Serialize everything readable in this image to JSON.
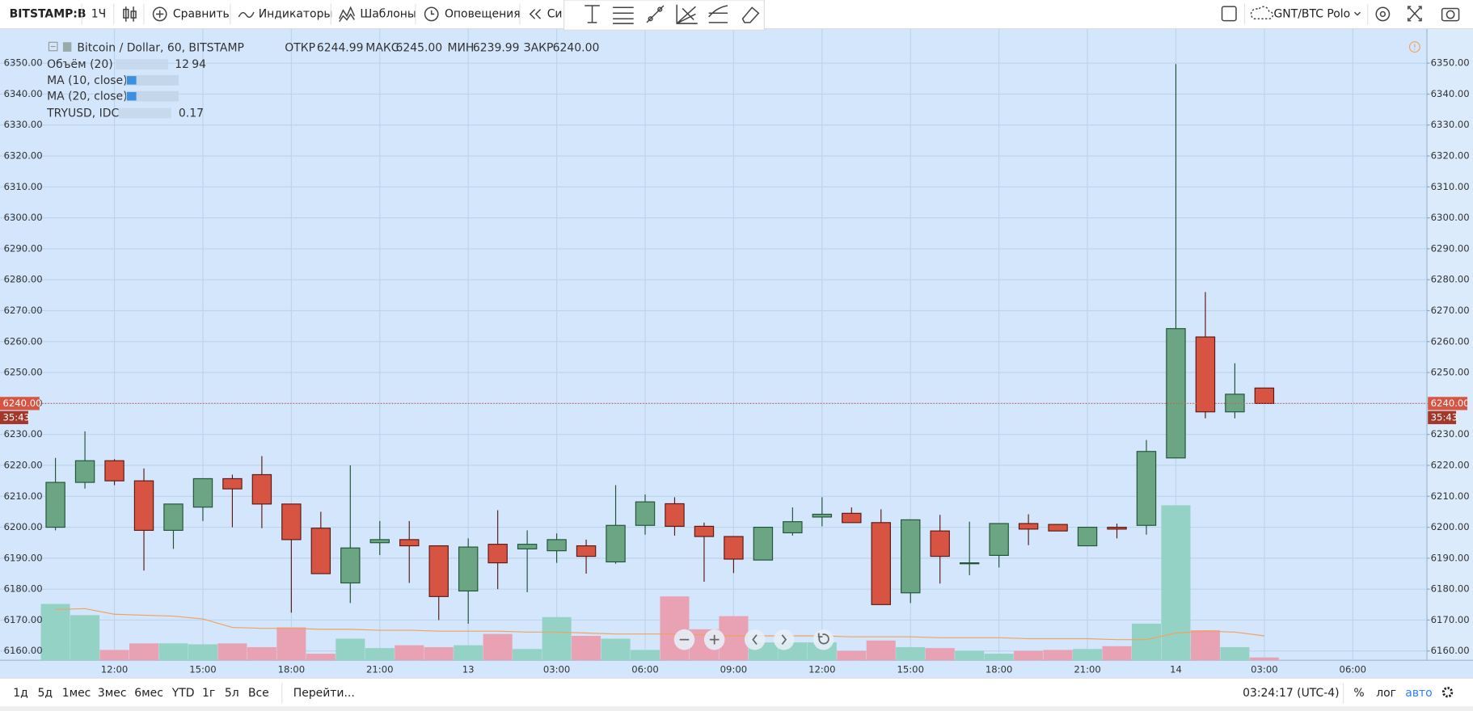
{
  "toolbar": {
    "symbol": "BITSTAMP:B",
    "interval": "1Ч",
    "compare": "Сравнить",
    "indicators": "Индикаторы",
    "templates": "Шаблоны",
    "alerts": "Оповещения",
    "replay": "Си",
    "layout_name": "GNT/BTC Polo"
  },
  "legend": {
    "open_label": "ОТКР",
    "open": "6244.99",
    "high_label": "МАКС",
    "high": "6245.00",
    "low_label": "МИН",
    "low": "6239.99",
    "close_label": "ЗАКР",
    "close": "6240.00",
    "studies": [
      {
        "name": "Объём (20)",
        "values": [
          12,
          94
        ]
      },
      {
        "name": "MA (10, close)"
      },
      {
        "name": "MA (20, close)"
      },
      {
        "name": "TRYUSD, IDC",
        "values": [
          0.17
        ]
      }
    ]
  },
  "bottom_bar": {
    "ranges": [
      "1д",
      "5д",
      "1мес",
      "3мес",
      "6мес",
      "YTD",
      "1г",
      "5л",
      "Все"
    ],
    "goto": "Перейти...",
    "clock": "03:24:17 (UTC-4)",
    "percent": "%",
    "log": "лог",
    "auto": "авто"
  },
  "chart_data": {
    "type": "candlestick",
    "title": "Bitcoin / Dollar, 60, BITSTAMP",
    "categories": [
      null,
      null,
      "12:00",
      null,
      null,
      "15:00",
      null,
      null,
      "18:00",
      null,
      null,
      "21:00",
      null,
      null,
      "13",
      null,
      null,
      "03:00",
      null,
      null,
      "06:00",
      null,
      null,
      "09:00",
      null,
      null,
      "12:00",
      null,
      null,
      "15:00",
      null,
      null,
      "18:00",
      null,
      null,
      "21:00",
      null,
      null,
      "14",
      null,
      null,
      "03:00",
      null,
      null,
      "06:00"
    ],
    "open": [
      6200,
      6214.5,
      6221.5,
      6215,
      6199,
      6206.5,
      6215.7,
      6217,
      6207.5,
      6199.7,
      6182,
      6195,
      6196,
      6194,
      6179.4,
      6194.5,
      6193,
      6192.4,
      6194,
      6188.8,
      6200.6,
      6207.6,
      6200.3,
      6197,
      6189.4,
      6198.2,
      6203.3,
      6204.5,
      6201.5,
      6178.8,
      6198.8,
      6188.2,
      6190.9,
      6201.2,
      6200.9,
      6194,
      6200,
      6200.6,
      6222.4,
      6261.5,
      6237.3,
      6244.99,
      null,
      null,
      null
    ],
    "high": [
      6222.4,
      6231,
      6222,
      6219,
      6207.5,
      6215.7,
      6217,
      6223,
      6207.5,
      6205,
      6220,
      6202,
      6202,
      6194,
      6196.4,
      6205.5,
      6199,
      6198,
      6196,
      6213.6,
      6210.6,
      6209.7,
      6201.5,
      6197,
      6200,
      6206.4,
      6209.7,
      6206.4,
      6205.8,
      6202.4,
      6204,
      6201.8,
      6201.2,
      6204.2,
      6200.9,
      6200,
      6201.2,
      6228.2,
      6349.7,
      6276,
      6253,
      6245,
      null,
      null,
      null
    ],
    "low": [
      6199,
      6212.5,
      6213.6,
      6186,
      6193,
      6202,
      6200,
      6199.7,
      6172.4,
      6185,
      6175.5,
      6191,
      6182,
      6170,
      6168.8,
      6180,
      6179,
      6188.5,
      6185,
      6188.2,
      6197.6,
      6197.3,
      6182.4,
      6185.2,
      6189.4,
      6197.3,
      6200.3,
      6201.5,
      6175,
      6175.5,
      6181.8,
      6184.5,
      6187,
      6194.2,
      6198.8,
      6194,
      6196.4,
      6197.6,
      6222.4,
      6235.2,
      6235.2,
      6239.99,
      null,
      null,
      null
    ],
    "close": [
      6214.5,
      6221.5,
      6215,
      6199,
      6207.5,
      6215.7,
      6212.4,
      6207.5,
      6196,
      6185,
      6193.3,
      6196,
      6194,
      6177.6,
      6193.6,
      6188.5,
      6194.5,
      6196,
      6190.6,
      6200.6,
      6208.2,
      6200.3,
      6197,
      6189.7,
      6200,
      6201.8,
      6204.2,
      6201.5,
      6175,
      6202.4,
      6190.6,
      6188.5,
      6201.2,
      6199.4,
      6198.8,
      6200,
      6199.4,
      6224.5,
      6264.2,
      6237.3,
      6243,
      6240,
      null,
      null,
      null
    ],
    "up_color": "#6ba583",
    "down_color": "#d75442",
    "volume": [
      60,
      48,
      11,
      18,
      18,
      17,
      18,
      14,
      35,
      7,
      23,
      13,
      16,
      14,
      16,
      28,
      12,
      46,
      26,
      23,
      11,
      68,
      33,
      47,
      19,
      19,
      19,
      10,
      21,
      14,
      13,
      10,
      7,
      10,
      11,
      12,
      15,
      39,
      165,
      32,
      14,
      3,
      null,
      null,
      null
    ],
    "volume_ma": [
      54,
      55,
      49,
      48,
      47,
      44,
      35,
      34,
      34,
      33,
      33,
      32,
      32,
      31,
      31,
      31,
      30,
      30,
      29,
      28,
      28,
      28,
      27,
      26,
      26,
      26,
      26,
      25,
      25,
      25,
      24,
      24,
      24,
      23,
      23,
      23,
      22,
      22,
      29,
      31,
      30,
      26,
      null,
      null,
      null
    ],
    "volume_up_color": "#93d2c4",
    "volume_down_color": "#e8a2b3",
    "volume_ma_color": "#f0a35e",
    "ylim": [
      6157,
      6361
    ],
    "yticks": [
      {
        "value": 6160,
        "label": "6160.00"
      },
      {
        "value": 6170,
        "label": "6170.00"
      },
      {
        "value": 6180,
        "label": "6180.00"
      },
      {
        "value": 6190,
        "label": "6190.00"
      },
      {
        "value": 6200,
        "label": "6200.00"
      },
      {
        "value": 6210,
        "label": "6210.00"
      },
      {
        "value": 6220,
        "label": "6220.00"
      },
      {
        "value": 6230,
        "label": "6230.00"
      },
      {
        "value": 6240,
        "label": "6240.00"
      },
      {
        "value": 6250,
        "label": "6250.00"
      },
      {
        "value": 6260,
        "label": "6260.00"
      },
      {
        "value": 6270,
        "label": "6270.00"
      },
      {
        "value": 6280,
        "label": "6280.00"
      },
      {
        "value": 6290,
        "label": "6290.00"
      },
      {
        "value": 6300,
        "label": "6300.00"
      },
      {
        "value": 6310,
        "label": "6310.00"
      },
      {
        "value": 6320,
        "label": "6320.00"
      },
      {
        "value": 6330,
        "label": "6330.00"
      },
      {
        "value": 6340,
        "label": "6340.00"
      },
      {
        "value": 6350,
        "label": "6350.00"
      }
    ],
    "grid": true,
    "price_line": {
      "value": 6240,
      "label": "6240.00",
      "countdown": "35:43",
      "color": "#d75442"
    }
  }
}
